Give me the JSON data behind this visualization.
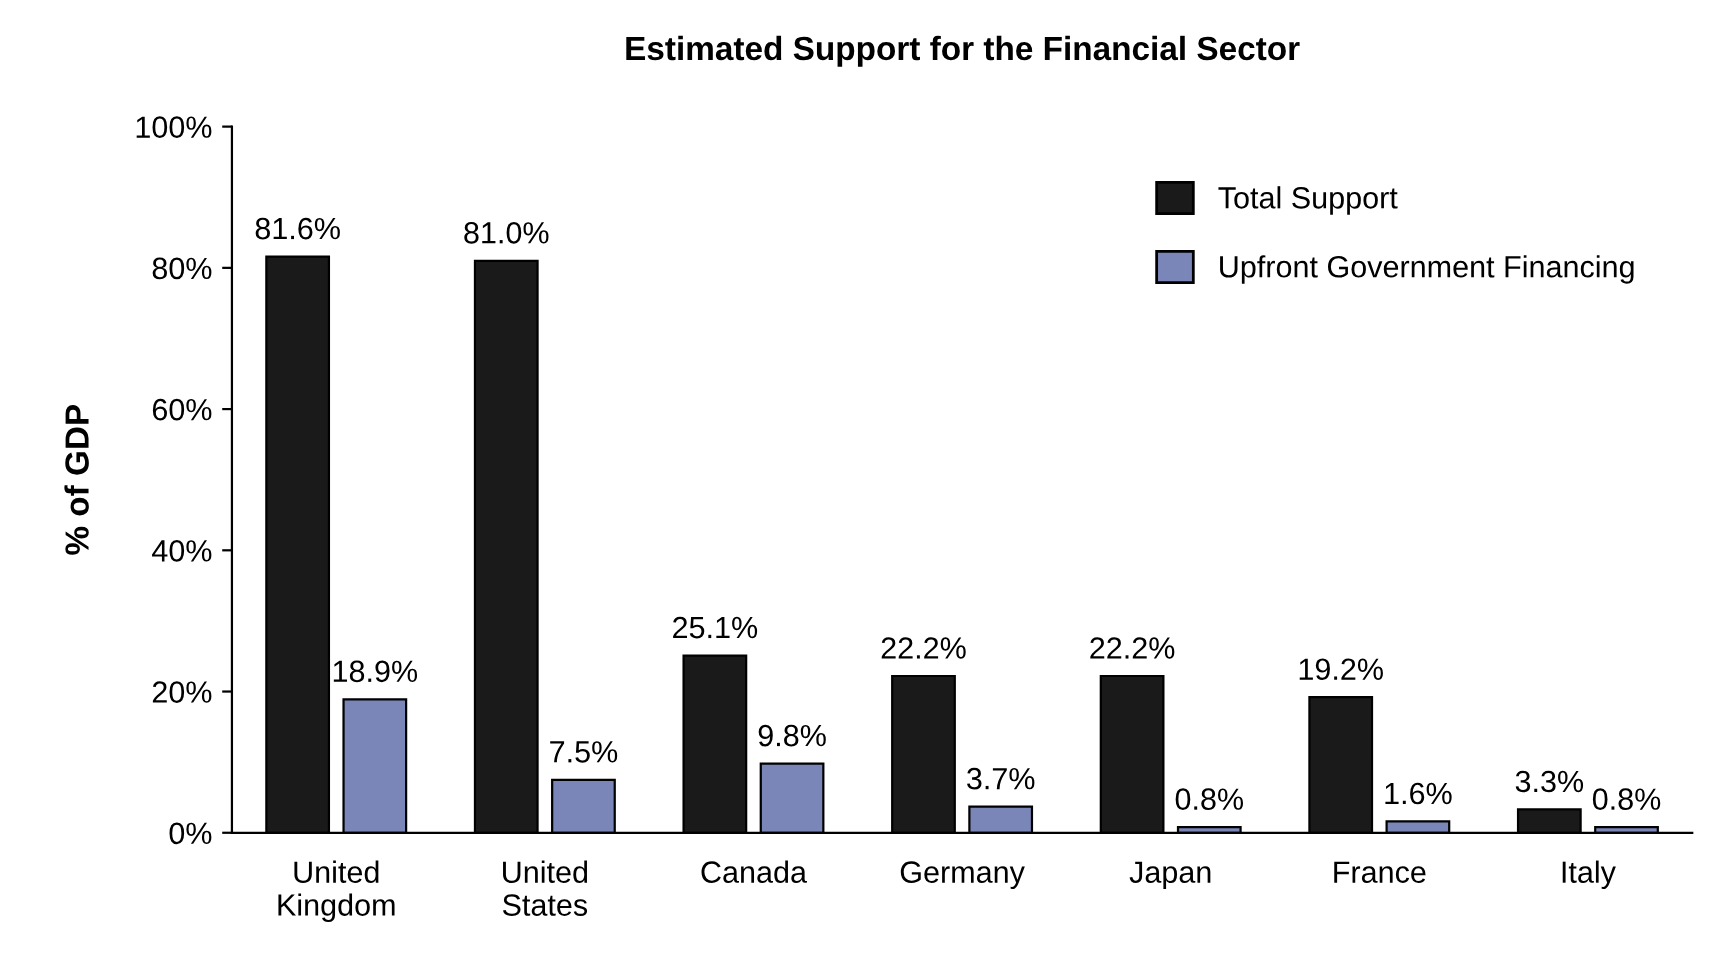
{
  "chart_data": {
    "type": "bar",
    "title": "Estimated Support for the Financial Sector",
    "ylabel": "% of GDP",
    "categories": [
      "United\nKingdom",
      "United\nStates",
      "Canada",
      "Germany",
      "Japan",
      "France",
      "Italy"
    ],
    "series": [
      {
        "name": "Total Support",
        "color": "#1a1a1a",
        "values": [
          81.6,
          81.0,
          25.1,
          22.2,
          22.2,
          19.2,
          3.3
        ],
        "value_labels": [
          "81.6%",
          "81.0%",
          "25.1%",
          "22.2%",
          "22.2%",
          "19.2%",
          "3.3%"
        ]
      },
      {
        "name": "Upfront Government Financing",
        "color": "#7b86b8",
        "values": [
          18.9,
          7.5,
          9.8,
          3.7,
          0.8,
          1.6,
          0.8
        ],
        "value_labels": [
          "18.9%",
          "7.5%",
          "9.8%",
          "3.7%",
          "0.8%",
          "1.6%",
          "0.8%"
        ]
      }
    ],
    "ylim": [
      0,
      100
    ],
    "yticks": [
      {
        "value": 0,
        "label": "0%"
      },
      {
        "value": 20,
        "label": "20%"
      },
      {
        "value": 40,
        "label": "40%"
      },
      {
        "value": 60,
        "label": "60%"
      },
      {
        "value": 80,
        "label": "80%"
      },
      {
        "value": 100,
        "label": "100%"
      }
    ],
    "legend": "top right",
    "grid": false
  }
}
